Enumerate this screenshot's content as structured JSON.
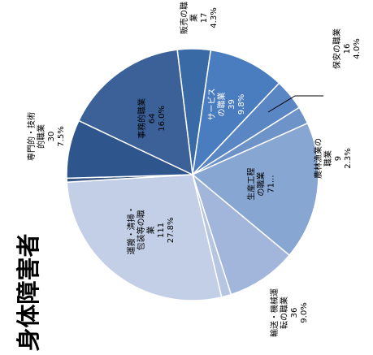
{
  "chart_data": {
    "type": "pie",
    "title": "身体障害者",
    "slices": [
      {
        "label_lines": [
          "販売の職",
          "業"
        ],
        "count": "17",
        "percent": "4.3%",
        "value": 17,
        "color": "#3a6aa6",
        "text_color": "#000000"
      },
      {
        "label_lines": [
          "サービス",
          "の職業"
        ],
        "count": "39",
        "percent": "9.8%",
        "value": 39,
        "color": "#4a7cc0",
        "text_color": "#ffffff"
      },
      {
        "label_lines": [
          "保安の職業"
        ],
        "count": "16",
        "percent": "4.0%",
        "value": 16,
        "color": "#5a86c4",
        "text_color": "#000000"
      },
      {
        "label_lines": [
          "農林漁業の",
          "職業"
        ],
        "count": "9",
        "percent": "2.3%",
        "value": 9,
        "color": "#6d93c9",
        "text_color": "#000000"
      },
      {
        "label_lines": [
          "生産工程",
          "の職業"
        ],
        "count": "71...",
        "percent": "",
        "value": 71,
        "color": "#87a6d2",
        "text_color": "#000000"
      },
      {
        "label_lines": [
          "輸送・機械運",
          "転の職業"
        ],
        "count": "36",
        "percent": "9.0%",
        "value": 36,
        "color": "#a1b6da",
        "text_color": "#000000"
      },
      {
        "label_lines": [],
        "count": "",
        "percent": "",
        "value": 5,
        "color": "#b5c5e2",
        "text_color": "#000000"
      },
      {
        "label_lines": [
          "運搬・清掃・",
          "包装等の職",
          "業"
        ],
        "count": "111",
        "percent": "27.8%",
        "value": 111,
        "color": "#c3cfe6",
        "text_color": "#000000"
      },
      {
        "label_lines": [],
        "count": "",
        "percent": "",
        "value": 2,
        "color": "#3c5a86",
        "text_color": "#000000"
      },
      {
        "label_lines": [
          "専門的・技術",
          "的職業"
        ],
        "count": "30",
        "percent": "7.5%",
        "value": 30,
        "color": "#2f568c",
        "text_color": "#000000"
      },
      {
        "label_lines": [
          "事務的職業"
        ],
        "count": "64",
        "percent": "16.0%",
        "value": 64,
        "color": "#3b6198",
        "text_color": "#000000"
      }
    ]
  }
}
